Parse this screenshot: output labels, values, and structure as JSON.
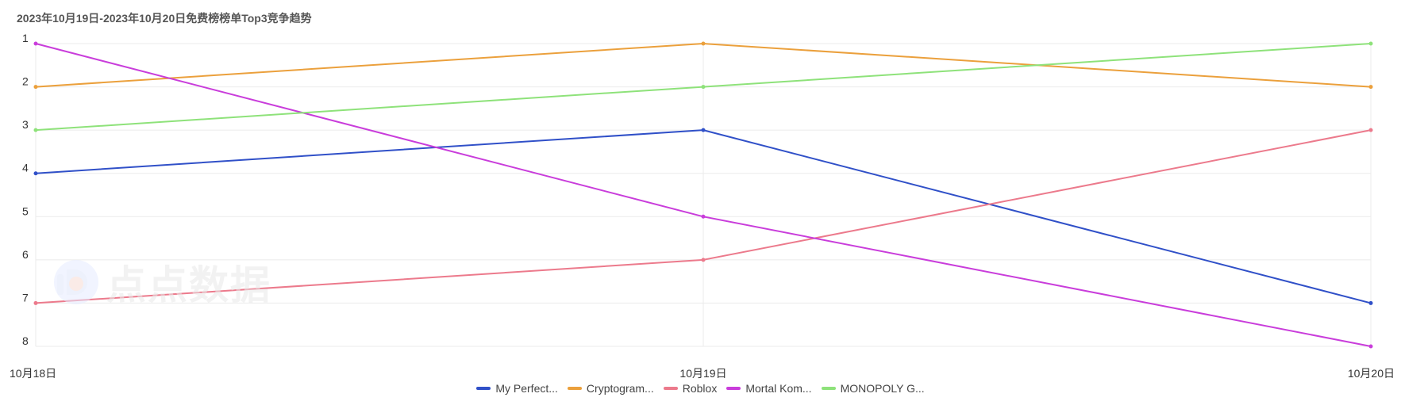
{
  "chart_data": {
    "type": "line",
    "title": "2023年10月19日-2023年10月20日免费榜榜单Top3竞争趋势",
    "categories": [
      "10月18日",
      "10月19日",
      "10月20日"
    ],
    "y_ticks": [
      "1",
      "2",
      "3",
      "4",
      "5",
      "6",
      "7",
      "8"
    ],
    "ylim": [
      1,
      8
    ],
    "y_inverted": true,
    "grid": true,
    "legend_position": "bottom",
    "series": [
      {
        "name": "My Perfect...",
        "color": "#3050c8",
        "values": [
          4,
          3,
          7
        ]
      },
      {
        "name": "Cryptogram...",
        "color": "#eba03c",
        "values": [
          2,
          1,
          2
        ]
      },
      {
        "name": "Roblox",
        "color": "#ec7a8c",
        "values": [
          7,
          6,
          3
        ]
      },
      {
        "name": "Mortal Kom...",
        "color": "#c93ddb",
        "values": [
          1,
          5,
          8
        ]
      },
      {
        "name": "MONOPOLY G...",
        "color": "#8ee27a",
        "values": [
          3,
          2,
          1
        ]
      }
    ]
  },
  "watermark": {
    "text": "点点数据",
    "icon": "diandian-logo-icon"
  }
}
